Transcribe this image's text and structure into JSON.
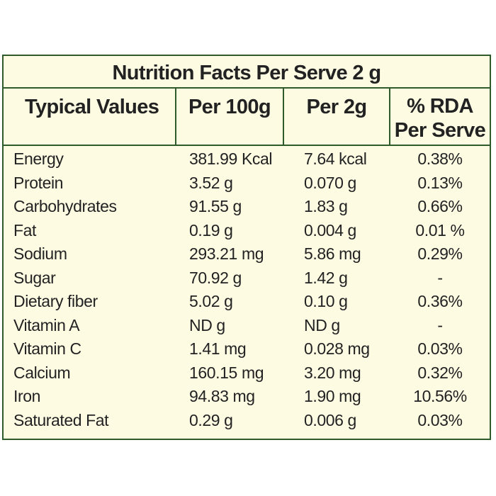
{
  "table": {
    "title": "Nutrition Facts Per Serve 2 g",
    "headers": {
      "typical": "Typical Values",
      "per100": "Per 100g",
      "per2": "Per 2g",
      "rda_line1": "% RDA",
      "rda_line2": "Per Serve"
    },
    "rows": [
      {
        "name": "Energy",
        "per100": "381.99 Kcal",
        "per2": "7.64 kcal",
        "rda": "0.38%"
      },
      {
        "name": "Protein",
        "per100": "3.52 g",
        "per2": "0.070 g",
        "rda": "0.13%"
      },
      {
        "name": "Carbohydrates",
        "per100": "91.55 g",
        "per2": "1.83 g",
        "rda": "0.66%"
      },
      {
        "name": "Fat",
        "per100": "0.19 g",
        "per2": "0.004 g",
        "rda": "0.01 %"
      },
      {
        "name": "Sodium",
        "per100": "293.21 mg",
        "per2": "5.86 mg",
        "rda": "0.29%"
      },
      {
        "name": "Sugar",
        "per100": "70.92 g",
        "per2": "1.42 g",
        "rda": "-"
      },
      {
        "name": "Dietary fiber",
        "per100": "5.02 g",
        "per2": "0.10 g",
        "rda": "0.36%"
      },
      {
        "name": "Vitamin A",
        "per100": "ND g",
        "per2": "ND g",
        "rda": "-"
      },
      {
        "name": "Vitamin C",
        "per100": "1.41 mg",
        "per2": "0.028 mg",
        "rda": "0.03%"
      },
      {
        "name": "Calcium",
        "per100": "160.15 mg",
        "per2": "3.20 mg",
        "rda": "0.32%"
      },
      {
        "name": "Iron",
        "per100": "94.83 mg",
        "per2": "1.90 mg",
        "rda": "10.56%"
      },
      {
        "name": "Saturated Fat",
        "per100": "0.29 g",
        "per2": "0.006 g",
        "rda": "0.03%"
      }
    ]
  },
  "colors": {
    "background": "#fefbe3",
    "border": "#2f5a2a",
    "text": "#222222"
  }
}
